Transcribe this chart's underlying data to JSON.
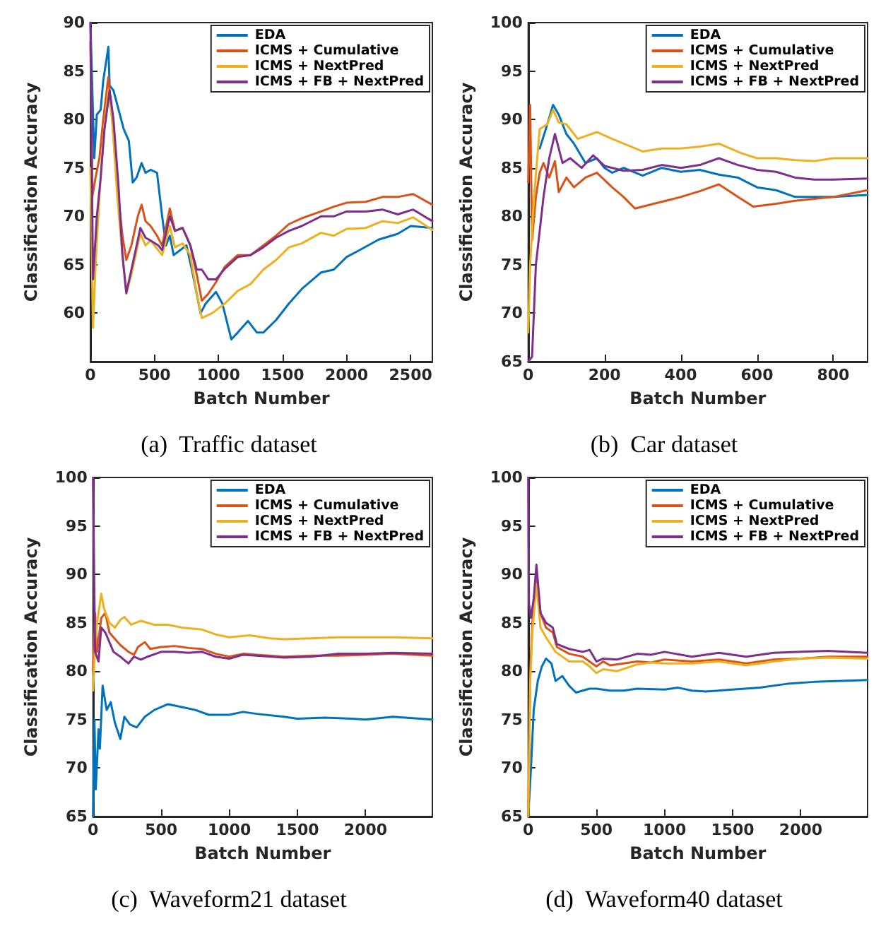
{
  "chart_data": [
    {
      "type": "line",
      "title": "(a)  Traffic dataset",
      "xlabel": "Batch Number",
      "ylabel": "Classification Accuracy",
      "xlim": [
        0,
        2670
      ],
      "xticks": [
        0,
        500,
        1000,
        1500,
        2000,
        2500
      ],
      "ylim": [
        55,
        90
      ],
      "yticks": [
        60,
        65,
        70,
        75,
        80,
        85,
        90
      ],
      "legend": "top right",
      "marker": "none",
      "line_style": "solid",
      "series": [
        {
          "name": "EDA",
          "color": "#0072bd",
          "x": [
            0,
            30,
            50,
            80,
            100,
            140,
            150,
            180,
            220,
            260,
            300,
            330,
            360,
            400,
            430,
            470,
            520,
            560,
            590,
            620,
            650,
            700,
            750,
            800,
            860,
            900,
            980,
            1030,
            1100,
            1150,
            1230,
            1300,
            1350,
            1450,
            1550,
            1650,
            1800,
            1900,
            2000,
            2100,
            2250,
            2400,
            2500,
            2670
          ],
          "values": [
            90,
            76,
            80.5,
            81,
            84,
            87.5,
            83.5,
            83,
            81,
            79,
            77.8,
            73.5,
            74,
            75.5,
            74.5,
            74.8,
            74.5,
            70,
            67,
            68,
            66,
            66.5,
            67,
            64,
            60,
            61,
            62.2,
            61,
            57.3,
            58,
            59.2,
            58,
            58,
            59.3,
            61,
            62.5,
            64.2,
            64.5,
            65.8,
            66.5,
            67.6,
            68.2,
            69,
            68.8
          ]
        },
        {
          "name": "ICMS + Cumulative",
          "color": "#d95319",
          "x": [
            0,
            15,
            40,
            70,
            100,
            140,
            170,
            210,
            250,
            280,
            320,
            370,
            400,
            430,
            470,
            520,
            560,
            620,
            660,
            720,
            780,
            830,
            870,
            920,
            980,
            1050,
            1150,
            1250,
            1350,
            1450,
            1550,
            1650,
            1800,
            1900,
            2000,
            2150,
            2280,
            2400,
            2520,
            2670
          ],
          "values": [
            88,
            72,
            74,
            76,
            80,
            84.4,
            80,
            73,
            68,
            65.5,
            67,
            70,
            71.2,
            69.5,
            69,
            68,
            67,
            70.8,
            68.5,
            68.8,
            67,
            64,
            61.3,
            62,
            63.2,
            64.8,
            66,
            66,
            67,
            68,
            69.2,
            69.8,
            70.5,
            71,
            71.4,
            71.5,
            72,
            72,
            72.3,
            71.2
          ]
        },
        {
          "name": "ICMS + NextPred",
          "color": "#edb120",
          "x": [
            0,
            20,
            40,
            70,
            100,
            140,
            170,
            210,
            250,
            280,
            320,
            390,
            430,
            470,
            530,
            560,
            620,
            660,
            720,
            780,
            830,
            870,
            950,
            1000,
            1050,
            1150,
            1250,
            1350,
            1450,
            1550,
            1650,
            1800,
            1900,
            2000,
            2150,
            2280,
            2400,
            2520,
            2670
          ],
          "values": [
            75,
            58.5,
            65,
            72,
            78,
            83,
            80,
            72,
            66,
            62,
            64,
            68.2,
            67,
            67.5,
            66.5,
            66,
            69,
            66.8,
            67.2,
            66,
            62,
            59.5,
            60,
            60.5,
            61,
            62.3,
            63,
            64.5,
            65.5,
            66.8,
            67.2,
            68.3,
            68,
            68.7,
            68.8,
            69.5,
            69.3,
            69.9,
            68.6
          ]
        },
        {
          "name": "ICMS + FB + NextPred",
          "color": "#7e2f8e",
          "x": [
            0,
            20,
            50,
            80,
            110,
            150,
            180,
            220,
            250,
            280,
            320,
            390,
            430,
            470,
            530,
            560,
            620,
            660,
            720,
            780,
            830,
            870,
            920,
            980,
            1050,
            1150,
            1250,
            1350,
            1450,
            1550,
            1650,
            1800,
            1900,
            2000,
            2150,
            2280,
            2400,
            2520,
            2670
          ],
          "values": [
            90,
            63.5,
            70,
            74,
            79,
            83,
            80,
            73,
            66,
            62.1,
            64.5,
            68.8,
            67.8,
            67.5,
            67,
            66.5,
            70,
            68.5,
            68.8,
            67,
            64.5,
            64.5,
            63.5,
            63.5,
            64.6,
            65.8,
            66,
            66.8,
            67.8,
            68.5,
            69,
            70,
            70,
            70.5,
            70.5,
            70.7,
            70.2,
            70.7,
            69.5
          ]
        }
      ]
    },
    {
      "type": "line",
      "title": "(b)  Car dataset",
      "xlabel": "Batch Number",
      "ylabel": "Classification Accuracy",
      "xlim": [
        0,
        890
      ],
      "xticks": [
        0,
        200,
        400,
        600,
        800
      ],
      "ylim": [
        65,
        100
      ],
      "yticks": [
        65,
        70,
        75,
        80,
        85,
        90,
        95,
        100
      ],
      "legend": "top right",
      "marker": "none",
      "line_style": "solid",
      "series": [
        {
          "name": "EDA",
          "color": "#0072bd",
          "x": [
            30,
            50,
            65,
            80,
            100,
            120,
            150,
            180,
            200,
            220,
            250,
            300,
            350,
            400,
            450,
            500,
            550,
            600,
            650,
            700,
            750,
            800,
            890
          ],
          "values": [
            87,
            89.5,
            91.5,
            90.5,
            88.5,
            87.5,
            85.5,
            86,
            85,
            84.5,
            85,
            84.2,
            85,
            84.6,
            84.8,
            84.3,
            84,
            83,
            82.7,
            82,
            82,
            82,
            82.2
          ]
        },
        {
          "name": "ICMS + Cumulative",
          "color": "#d95319",
          "x": [
            0,
            5,
            10,
            20,
            30,
            40,
            55,
            70,
            80,
            100,
            120,
            150,
            180,
            220,
            250,
            280,
            320,
            370,
            400,
            450,
            500,
            550,
            590,
            650,
            700,
            750,
            800,
            890
          ],
          "values": [
            83.5,
            91.5,
            77.5,
            82,
            84.5,
            85.5,
            84,
            85.7,
            82.5,
            84,
            83,
            84,
            84.5,
            83,
            82,
            80.8,
            81.2,
            81.7,
            82,
            82.6,
            83.3,
            82,
            81,
            81.3,
            81.6,
            81.8,
            82,
            82.7
          ]
        },
        {
          "name": "ICMS + NextPred",
          "color": "#edb120",
          "x": [
            0,
            5,
            15,
            30,
            50,
            65,
            80,
            100,
            130,
            180,
            220,
            300,
            350,
            400,
            450,
            500,
            560,
            600,
            650,
            700,
            750,
            800,
            890
          ],
          "values": [
            68,
            75,
            82,
            89,
            89.5,
            91,
            89.7,
            89.5,
            88,
            88.7,
            88,
            86.7,
            87,
            87,
            87.2,
            87.5,
            86.5,
            86,
            86,
            85.8,
            85.7,
            86,
            86
          ]
        },
        {
          "name": "ICMS + FB + NextPred",
          "color": "#7e2f8e",
          "x": [
            0,
            10,
            20,
            40,
            55,
            70,
            90,
            110,
            140,
            170,
            200,
            250,
            300,
            350,
            400,
            450,
            500,
            550,
            600,
            650,
            700,
            750,
            800,
            890
          ],
          "values": [
            65,
            65.5,
            75,
            82,
            86,
            88.5,
            85.5,
            86,
            85,
            86.3,
            85.2,
            84.7,
            84.8,
            85.3,
            85,
            85.3,
            86,
            85.3,
            84.8,
            84.6,
            84,
            83.8,
            83.8,
            83.9
          ]
        }
      ]
    },
    {
      "type": "line",
      "title": "(c)  Waveform21 dataset",
      "xlabel": "Batch Number",
      "ylabel": "Classification Accuracy",
      "xlim": [
        0,
        2490
      ],
      "xticks": [
        0,
        500,
        1000,
        1500,
        2000
      ],
      "ylim": [
        65,
        100
      ],
      "yticks": [
        65,
        70,
        75,
        80,
        85,
        90,
        95,
        100
      ],
      "legend": "top right",
      "marker": "none",
      "line_style": "solid",
      "series": [
        {
          "name": "EDA",
          "color": "#0072bd",
          "x": [
            0,
            10,
            20,
            40,
            50,
            70,
            100,
            130,
            160,
            200,
            230,
            270,
            320,
            380,
            450,
            550,
            650,
            750,
            850,
            1000,
            1100,
            1200,
            1400,
            1500,
            1700,
            1900,
            2000,
            2200,
            2490
          ],
          "values": [
            65,
            75,
            67.8,
            74,
            72,
            78.5,
            76,
            76.8,
            74.7,
            73,
            75.3,
            74.5,
            74.2,
            75.3,
            76,
            76.6,
            76.3,
            76,
            75.5,
            75.5,
            75.8,
            75.6,
            75.3,
            75.1,
            75.2,
            75.1,
            75,
            75.3,
            75
          ]
        },
        {
          "name": "ICMS + Cumulative",
          "color": "#d95319",
          "x": [
            0,
            15,
            30,
            60,
            90,
            120,
            150,
            200,
            260,
            300,
            330,
            380,
            420,
            500,
            600,
            700,
            800,
            900,
            1000,
            1100,
            1200,
            1400,
            1600,
            1800,
            2000,
            2200,
            2490
          ],
          "values": [
            80,
            86,
            82,
            85.5,
            86,
            84,
            83.5,
            82.7,
            82,
            81.7,
            82.5,
            83,
            82.3,
            82.5,
            82.6,
            82.4,
            82.3,
            81.8,
            81.5,
            81.8,
            81.7,
            81.5,
            81.6,
            81.6,
            81.7,
            81.8,
            81.6
          ]
        },
        {
          "name": "ICMS + NextPred",
          "color": "#edb120",
          "x": [
            0,
            20,
            40,
            60,
            80,
            120,
            160,
            200,
            230,
            280,
            350,
            450,
            550,
            650,
            800,
            900,
            1000,
            1150,
            1300,
            1400,
            1600,
            1800,
            2000,
            2200,
            2490
          ],
          "values": [
            78,
            84,
            86,
            88,
            86.5,
            85,
            84.5,
            85.3,
            85.6,
            84.8,
            85.2,
            84.8,
            84.8,
            84.5,
            84.3,
            83.8,
            83.5,
            83.7,
            83.4,
            83.3,
            83.4,
            83.5,
            83.5,
            83.5,
            83.4
          ]
        },
        {
          "name": "ICMS + FB + NextPred",
          "color": "#7e2f8e",
          "x": [
            0,
            8,
            15,
            40,
            60,
            90,
            120,
            150,
            200,
            260,
            300,
            350,
            400,
            500,
            600,
            700,
            800,
            900,
            1000,
            1100,
            1200,
            1400,
            1600,
            1800,
            2000,
            2200,
            2490
          ],
          "values": [
            100,
            90,
            82,
            81,
            84.5,
            84,
            83,
            82,
            81.5,
            80.8,
            81.5,
            81.2,
            81.5,
            82,
            82,
            81.9,
            82,
            81.5,
            81.3,
            81.7,
            81.6,
            81.4,
            81.5,
            81.8,
            81.8,
            81.9,
            81.8
          ]
        }
      ]
    },
    {
      "type": "line",
      "title": "(d)  Waveform40 dataset",
      "xlabel": "Batch Number",
      "ylabel": "Classification Accuracy",
      "xlim": [
        0,
        2490
      ],
      "xticks": [
        0,
        500,
        1000,
        1500,
        2000
      ],
      "ylim": [
        65,
        100
      ],
      "yticks": [
        65,
        70,
        75,
        80,
        85,
        90,
        95,
        100
      ],
      "legend": "top right",
      "marker": "none",
      "line_style": "solid",
      "series": [
        {
          "name": "EDA",
          "color": "#0072bd",
          "x": [
            0,
            20,
            40,
            70,
            100,
            130,
            170,
            200,
            250,
            300,
            350,
            400,
            450,
            500,
            600,
            700,
            800,
            1000,
            1100,
            1200,
            1300,
            1500,
            1700,
            1900,
            2100,
            2300,
            2490
          ],
          "values": [
            65,
            70,
            76,
            79,
            80.5,
            81.3,
            80.8,
            79,
            79.5,
            78.5,
            77.8,
            78,
            78.2,
            78.2,
            78,
            78,
            78.2,
            78.1,
            78.3,
            78,
            77.9,
            78.1,
            78.3,
            78.7,
            78.9,
            79,
            79.1
          ]
        },
        {
          "name": "ICMS + Cumulative",
          "color": "#d95319",
          "x": [
            0,
            15,
            30,
            60,
            90,
            130,
            180,
            210,
            300,
            400,
            500,
            550,
            600,
            700,
            800,
            900,
            1000,
            1200,
            1400,
            1600,
            1800,
            2000,
            2200,
            2490
          ],
          "values": [
            65,
            80,
            85,
            89.5,
            86,
            84.5,
            84,
            82.5,
            81.8,
            81.5,
            80.5,
            81,
            80.6,
            80.8,
            81,
            80.9,
            81.2,
            81,
            81.2,
            80.8,
            81.2,
            81.3,
            81.5,
            81.5
          ]
        },
        {
          "name": "ICMS + NextPred",
          "color": "#edb120",
          "x": [
            0,
            15,
            30,
            60,
            90,
            130,
            200,
            300,
            400,
            450,
            500,
            550,
            650,
            800,
            900,
            1000,
            1200,
            1400,
            1600,
            1800,
            2000,
            2200,
            2490
          ],
          "values": [
            65,
            79,
            84,
            89,
            84.5,
            83.5,
            82,
            81,
            81,
            80.5,
            79.8,
            80.2,
            80,
            80.7,
            80.9,
            80.8,
            80.8,
            81,
            80.6,
            81,
            81.3,
            81.4,
            81.3
          ]
        },
        {
          "name": "ICMS + FB + NextPred",
          "color": "#7e2f8e",
          "x": [
            0,
            5,
            20,
            40,
            60,
            90,
            130,
            180,
            210,
            300,
            400,
            450,
            500,
            550,
            650,
            800,
            900,
            1000,
            1200,
            1400,
            1600,
            1800,
            2000,
            2200,
            2490
          ],
          "values": [
            100,
            87,
            85.5,
            87.5,
            91,
            86,
            85,
            84.5,
            82.8,
            82.3,
            82,
            82.2,
            81,
            81.3,
            81.2,
            81.8,
            81.7,
            82,
            81.5,
            81.9,
            81.5,
            81.9,
            82,
            82.1,
            81.9
          ]
        }
      ]
    }
  ]
}
